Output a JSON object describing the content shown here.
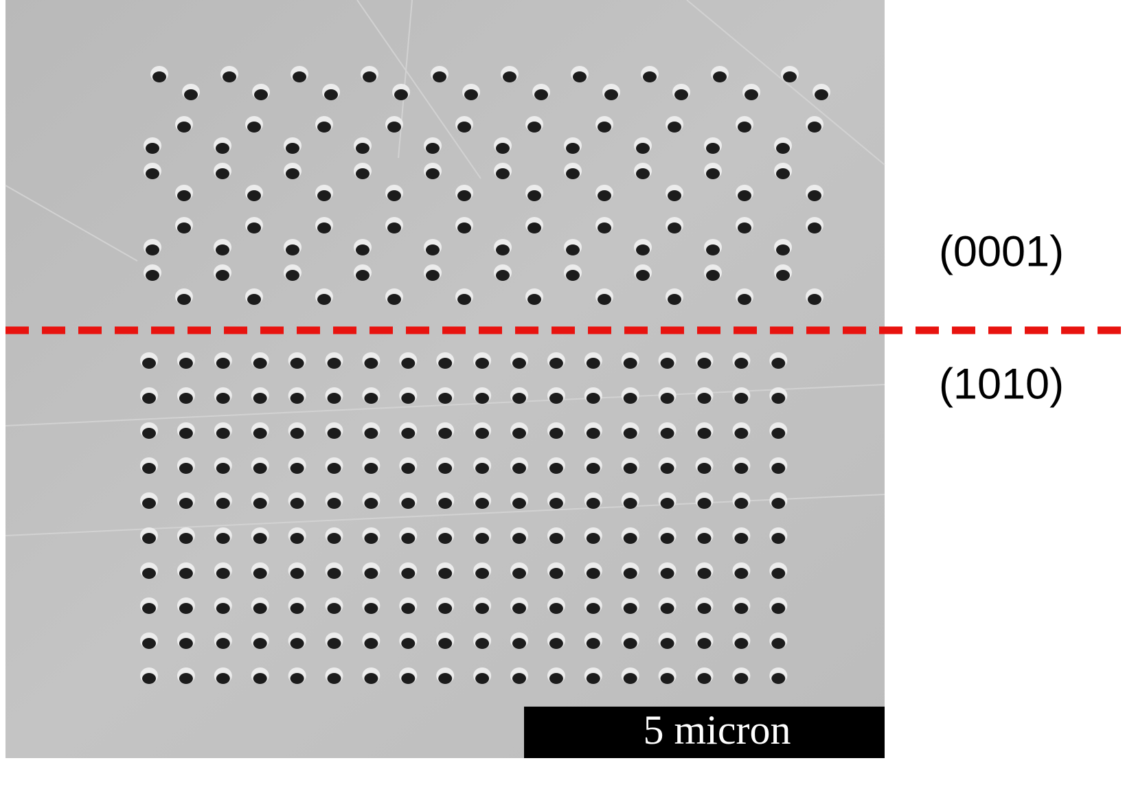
{
  "labels": {
    "upper_region": "(0001)",
    "lower_region": "(1010)"
  },
  "scale_bar": {
    "label": "5 micron"
  }
}
